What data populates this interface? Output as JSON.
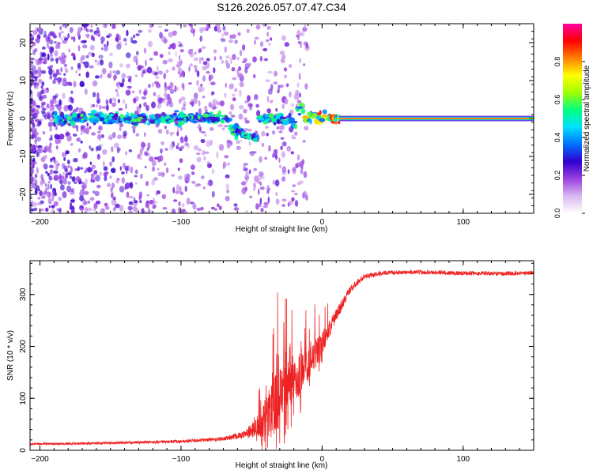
{
  "figure": {
    "title": "S126.2026.057.07.47.C34"
  },
  "chart_data": [
    {
      "id": "spectrogram",
      "type": "heatmap",
      "xlabel": "Height of straight line (km)",
      "ylabel": "Frequency (Hz)",
      "xlim": [
        -207,
        150
      ],
      "ylim": [
        -25,
        25
      ],
      "xticks": [
        -200,
        -100,
        0,
        100
      ],
      "yticks": [
        -20,
        -10,
        0,
        10,
        20
      ],
      "xtick_labels": [
        "−200",
        "−100",
        "0",
        "100"
      ],
      "ytick_labels": [
        "−20",
        "−10",
        "0",
        "10",
        "20"
      ],
      "colorbar": {
        "label": "Normalized spectral amplitude",
        "range": [
          0,
          1
        ],
        "ticks": [
          0.0,
          0.2,
          0.4,
          0.6,
          0.8
        ],
        "tick_labels": [
          "0.0",
          "0.2",
          "0.4",
          "0.6",
          "0.8"
        ],
        "colors": [
          "#ffffff",
          "#d9b8f0",
          "#9b40e0",
          "#3000d0",
          "#0070ff",
          "#00e0ff",
          "#00ff80",
          "#a0ff00",
          "#ffff00",
          "#ff8000",
          "#ff0000",
          "#ff00a0"
        ]
      },
      "features": {
        "carrier_line": {
          "x_start": 12,
          "x_end": 150,
          "y": 0,
          "amplitude": 0.95
        },
        "scintillation_band": {
          "x_start": -190,
          "x_end": 12,
          "y_center": 0,
          "amplitude": 0.4
        },
        "diffuse_noise": {
          "x_start": -207,
          "x_end": -10,
          "y_spread": 25,
          "amplitude": 0.1
        }
      }
    },
    {
      "id": "snr",
      "type": "line",
      "xlabel": "Height of straight line (km)",
      "ylabel": "SNR (10 * v/v)",
      "xlim": [
        -207,
        150
      ],
      "ylim": [
        0,
        365
      ],
      "xticks": [
        -200,
        -100,
        0,
        100
      ],
      "yticks": [
        0,
        100,
        200,
        300
      ],
      "xtick_labels": [
        "−200",
        "−100",
        "0",
        "100"
      ],
      "ytick_labels": [
        "0",
        "100",
        "200",
        "300"
      ],
      "color": "#ee2222",
      "series": [
        {
          "name": "SNR",
          "x": [
            -207,
            -150,
            -100,
            -70,
            -55,
            -45,
            -38,
            -32,
            -28,
            -22,
            -15,
            -8,
            0,
            10,
            20,
            30,
            45,
            70,
            100,
            130,
            150
          ],
          "values": [
            12,
            14,
            17,
            22,
            30,
            45,
            70,
            95,
            110,
            130,
            150,
            175,
            205,
            260,
            310,
            335,
            342,
            343,
            341,
            340,
            342
          ],
          "noise": [
            4,
            5,
            6,
            8,
            15,
            40,
            90,
            120,
            110,
            100,
            80,
            60,
            40,
            25,
            15,
            10,
            8,
            8,
            8,
            8,
            8
          ]
        }
      ]
    }
  ]
}
